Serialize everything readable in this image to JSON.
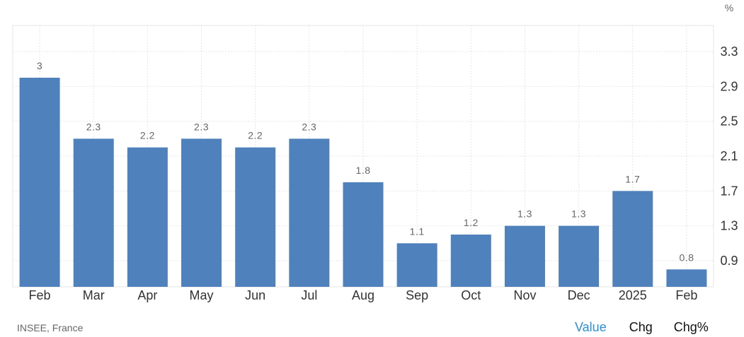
{
  "chart_data": {
    "type": "bar",
    "categories": [
      "Feb",
      "Mar",
      "Apr",
      "May",
      "Jun",
      "Jul",
      "Aug",
      "Sep",
      "Oct",
      "Nov",
      "Dec",
      "2025",
      "Feb"
    ],
    "values": [
      3,
      2.3,
      2.2,
      2.3,
      2.2,
      2.3,
      1.8,
      1.1,
      1.2,
      1.3,
      1.3,
      1.7,
      0.8
    ],
    "data_labels": [
      "3",
      "2.3",
      "2.2",
      "2.3",
      "2.2",
      "2.3",
      "1.8",
      "1.1",
      "1.2",
      "1.3",
      "1.3",
      "1.7",
      "0.8"
    ],
    "y_ticks": [
      0.9,
      1.3,
      1.7,
      2.1,
      2.5,
      2.9,
      3.3
    ],
    "y_tick_labels": [
      "0.9",
      "1.3",
      "1.7",
      "2.1",
      "2.5",
      "2.9",
      "3.3"
    ],
    "ylim": [
      0.6,
      3.6
    ],
    "unit": "%",
    "y_axis_side": "right",
    "grid": true,
    "bar_color": "#4f81bd"
  },
  "source": "INSEE, France",
  "toggles": {
    "value_label": "Value",
    "chg_label": "Chg",
    "chgpct_label": "Chg%",
    "active": "Value",
    "active_color": "#2b8fd8"
  }
}
